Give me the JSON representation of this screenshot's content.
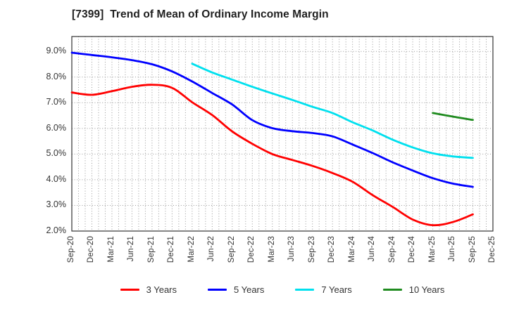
{
  "chart_data": {
    "type": "line",
    "title": "[7399]  Trend of Mean of Ordinary Income Margin",
    "categories": [
      "Sep-20",
      "Dec-20",
      "Mar-21",
      "Jun-21",
      "Sep-21",
      "Dec-21",
      "Mar-22",
      "Jun-22",
      "Sep-22",
      "Dec-22",
      "Mar-23",
      "Jun-23",
      "Sep-23",
      "Dec-23",
      "Mar-24",
      "Jun-24",
      "Sep-24",
      "Dec-24",
      "Mar-25",
      "Jun-25",
      "Sep-25",
      "Dec-25"
    ],
    "ylabel_format": "percent",
    "ylim": [
      2.0,
      9.58
    ],
    "yticks": [
      {
        "v": 2,
        "label": "2.0%"
      },
      {
        "v": 3,
        "label": "3.0%"
      },
      {
        "v": 4,
        "label": "4.0%"
      },
      {
        "v": 5,
        "label": "5.0%"
      },
      {
        "v": 6,
        "label": "6.0%"
      },
      {
        "v": 7,
        "label": "7.0%"
      },
      {
        "v": 8,
        "label": "8.0%"
      },
      {
        "v": 9,
        "label": "9.0%"
      }
    ],
    "grid": "dotted",
    "x_minor_divisions_per_interval": 3,
    "legend_position": "bottom",
    "axis_color": "#333333",
    "grid_color": "#989898",
    "series": [
      {
        "name": "3 Years",
        "color": "#ff0000",
        "start_index": 0,
        "values": [
          7.4,
          7.31,
          7.45,
          7.62,
          7.7,
          7.58,
          7.02,
          6.52,
          5.88,
          5.4,
          5.0,
          4.77,
          4.54,
          4.26,
          3.92,
          3.4,
          2.94,
          2.45,
          2.23,
          2.35,
          2.65
        ]
      },
      {
        "name": "5 Years",
        "color": "#0000ff",
        "start_index": 0,
        "values": [
          8.95,
          8.86,
          8.77,
          8.66,
          8.5,
          8.22,
          7.83,
          7.38,
          6.93,
          6.32,
          6.01,
          5.89,
          5.82,
          5.69,
          5.37,
          5.04,
          4.68,
          4.36,
          4.06,
          3.85,
          3.72
        ]
      },
      {
        "name": "7 Years",
        "color": "#00e0ee",
        "start_index": 6,
        "values": [
          8.52,
          8.18,
          7.9,
          7.62,
          7.36,
          7.11,
          6.84,
          6.6,
          6.24,
          5.92,
          5.56,
          5.26,
          5.03,
          4.91,
          4.85
        ]
      },
      {
        "name": "10 Years",
        "color": "#1f8b1f",
        "start_index": 18,
        "values": [
          6.6,
          6.46,
          6.33
        ]
      }
    ]
  }
}
